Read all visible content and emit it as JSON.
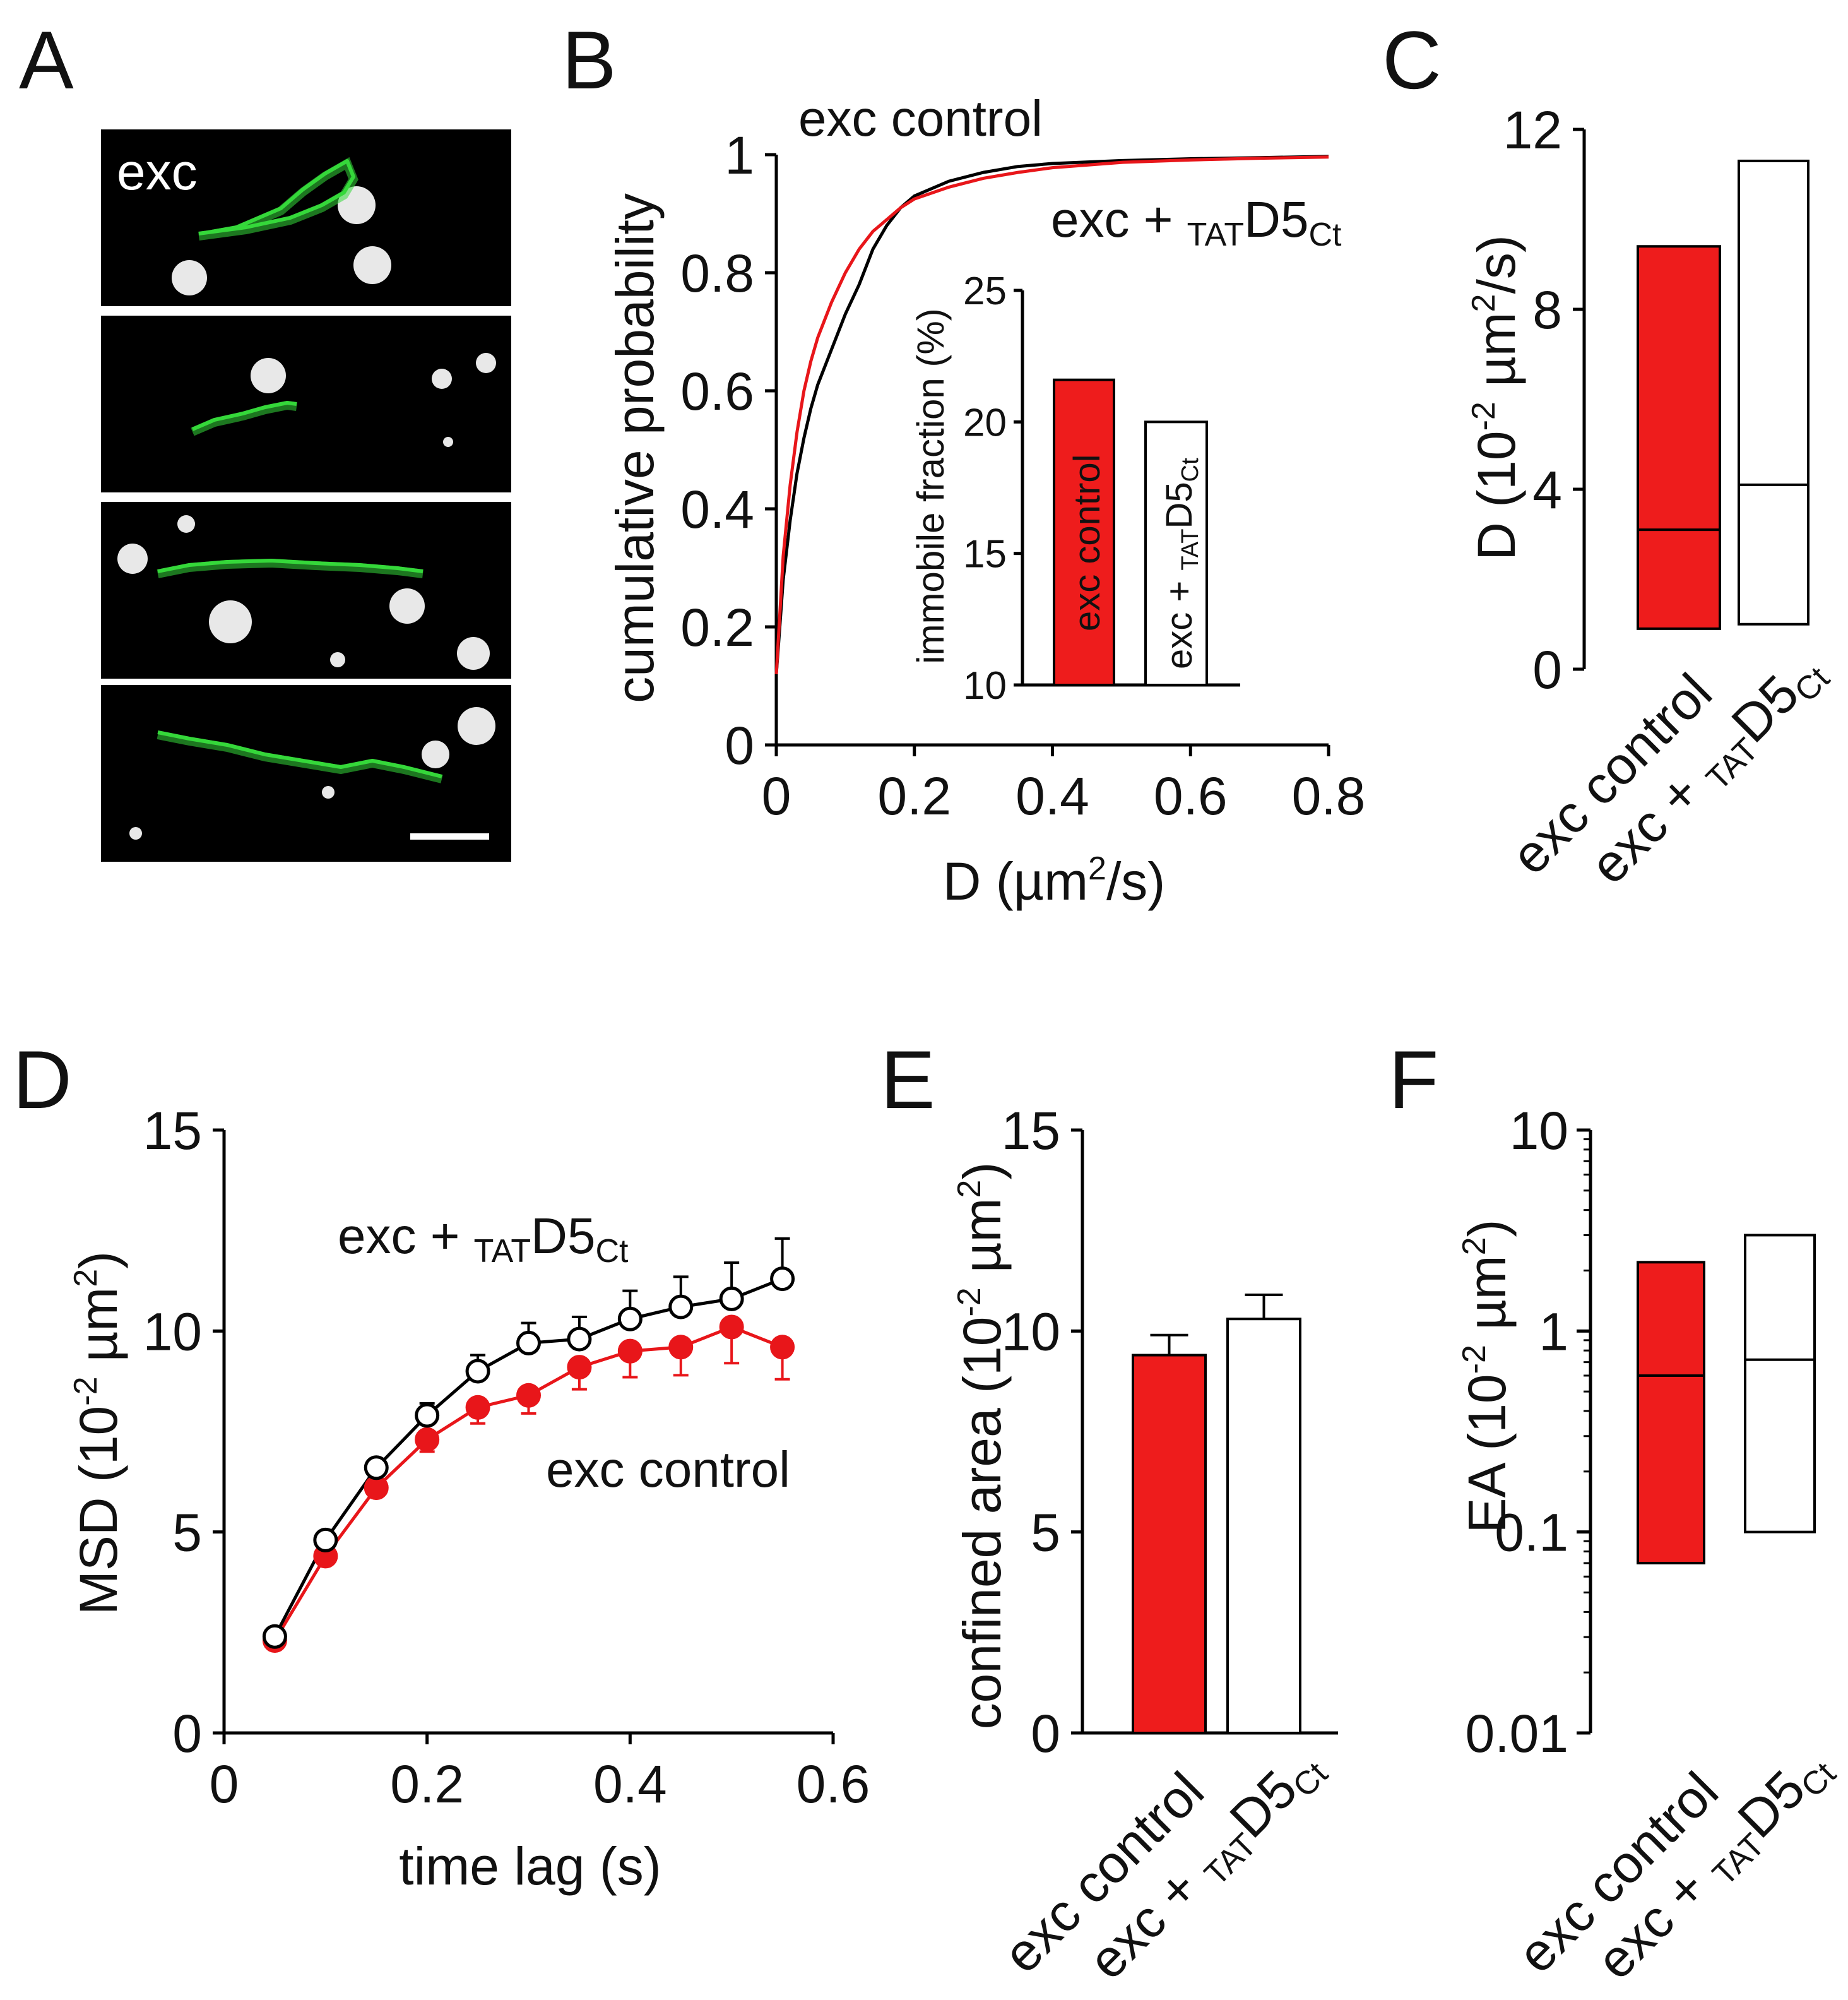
{
  "colors": {
    "control": "#ee1c1c",
    "tat": "#ffffff",
    "control_line": "#e8161a",
    "tat_line": "#000000",
    "track": "#35d83a",
    "image_bg": "#000000"
  },
  "condition_labels": {
    "control": "exc control",
    "tat_prefix": "exc + ",
    "tat_sub": "TAT",
    "tat_main": "D5",
    "tat_sub2": "Ct"
  },
  "panels": {
    "A": {
      "letter": "A",
      "image_label": "exc",
      "image_count": 4,
      "icon": "single-particle-track-micrographs"
    },
    "B": {
      "letter": "B",
      "annotation_control": "exc control",
      "ylabel": "cumulative probability",
      "xlabel_main": "D (µm",
      "xlabel_sup": "2",
      "xlabel_end": "/s)"
    },
    "B_inset": {
      "ylabel": "immobile fraction (%)",
      "bar_label_control": "exc control"
    },
    "C": {
      "letter": "C",
      "ylabel_main": "D (10",
      "ylabel_sup": "-2",
      "ylabel_mid": " µm",
      "ylabel_sup2": "2",
      "ylabel_end": "/s)"
    },
    "D": {
      "letter": "D",
      "annotation_control": "exc control",
      "ylabel_main": "MSD (10",
      "ylabel_sup": "-2",
      "ylabel_mid": " µm",
      "ylabel_sup2": "2",
      "ylabel_end": ")",
      "xlabel": "time lag (s)"
    },
    "E": {
      "letter": "E",
      "ylabel_main": "confined area (10",
      "ylabel_sup": "-2",
      "ylabel_mid": " µm",
      "ylabel_sup2": "2",
      "ylabel_end": ")"
    },
    "F": {
      "letter": "F",
      "ylabel_main": "EA (10",
      "ylabel_sup": "-2",
      "ylabel_mid": " µm",
      "ylabel_sup2": "2",
      "ylabel_end": ")"
    }
  },
  "chart_data": [
    {
      "panel": "B",
      "type": "line",
      "xlabel": "D (µm2/s)",
      "ylabel": "cumulative probability",
      "xlim": [
        0,
        0.8
      ],
      "ylim": [
        0,
        1
      ],
      "xticks": [
        "0",
        "0.2",
        "0.4",
        "0.6",
        "0.8"
      ],
      "yticks": [
        "0",
        "0.2",
        "0.4",
        "0.6",
        "0.8",
        "1"
      ],
      "series": [
        {
          "name": "exc control",
          "color": "#000000",
          "x": [
            0,
            0.005,
            0.01,
            0.02,
            0.03,
            0.04,
            0.05,
            0.06,
            0.08,
            0.1,
            0.12,
            0.14,
            0.16,
            0.18,
            0.2,
            0.25,
            0.3,
            0.35,
            0.4,
            0.5,
            0.6,
            0.7,
            0.8
          ],
          "y": [
            0.12,
            0.2,
            0.28,
            0.38,
            0.46,
            0.52,
            0.57,
            0.61,
            0.67,
            0.73,
            0.78,
            0.84,
            0.88,
            0.91,
            0.93,
            0.955,
            0.97,
            0.98,
            0.985,
            0.99,
            0.993,
            0.995,
            0.997
          ]
        },
        {
          "name": "exc + TATD5Ct",
          "color": "#e8161a",
          "x": [
            0,
            0.005,
            0.01,
            0.02,
            0.03,
            0.04,
            0.05,
            0.06,
            0.08,
            0.1,
            0.12,
            0.14,
            0.16,
            0.18,
            0.2,
            0.25,
            0.3,
            0.35,
            0.4,
            0.5,
            0.6,
            0.7,
            0.8
          ],
          "y": [
            0.12,
            0.22,
            0.32,
            0.44,
            0.53,
            0.6,
            0.65,
            0.69,
            0.75,
            0.8,
            0.84,
            0.87,
            0.89,
            0.91,
            0.925,
            0.945,
            0.96,
            0.97,
            0.978,
            0.987,
            0.991,
            0.994,
            0.996
          ]
        }
      ]
    },
    {
      "panel": "B-inset",
      "type": "bar",
      "ylabel": "immobile fraction (%)",
      "ylim": [
        10,
        25
      ],
      "yticks": [
        "10",
        "15",
        "20",
        "25"
      ],
      "categories": [
        "exc control",
        "exc + TATD5Ct"
      ],
      "values": [
        21.6,
        20
      ]
    },
    {
      "panel": "C",
      "type": "bar",
      "ylabel": "D (10-2 µm2/s)",
      "ylim": [
        0,
        12
      ],
      "yticks": [
        "0",
        "4",
        "8",
        "12"
      ],
      "categories": [
        "exc control",
        "exc + TATD5Ct"
      ],
      "box_low": [
        0.9,
        1.0
      ],
      "box_median": [
        3.1,
        4.1
      ],
      "box_high": [
        9.4,
        11.3
      ]
    },
    {
      "panel": "D",
      "type": "line",
      "xlabel": "time lag (s)",
      "ylabel": "MSD (10-2 µm2)",
      "xlim": [
        0,
        0.6
      ],
      "ylim": [
        0,
        15
      ],
      "xticks": [
        "0",
        "0.2",
        "0.4",
        "0.6"
      ],
      "yticks": [
        "0",
        "5",
        "10",
        "15"
      ],
      "x": [
        0.05,
        0.1,
        0.15,
        0.2,
        0.25,
        0.3,
        0.35,
        0.4,
        0.45,
        0.5,
        0.55
      ],
      "series": [
        {
          "name": "exc control",
          "color": "#e8161a",
          "values": [
            2.3,
            4.4,
            6.1,
            7.3,
            8.1,
            8.4,
            9.1,
            9.5,
            9.6,
            10.1,
            9.6
          ],
          "errors": [
            0.1,
            0.15,
            0.2,
            0.3,
            0.4,
            0.45,
            0.55,
            0.65,
            0.7,
            0.9,
            0.8
          ]
        },
        {
          "name": "exc + TATD5Ct",
          "color": "#000000",
          "values": [
            2.4,
            4.8,
            6.6,
            7.9,
            9.0,
            9.7,
            9.8,
            10.3,
            10.6,
            10.8,
            11.3
          ],
          "errors": [
            0.1,
            0.15,
            0.2,
            0.3,
            0.4,
            0.5,
            0.55,
            0.7,
            0.75,
            0.9,
            1.0
          ]
        }
      ]
    },
    {
      "panel": "E",
      "type": "bar",
      "ylabel": "confined area (10-2 µm2)",
      "ylim": [
        0,
        15
      ],
      "yticks": [
        "0",
        "5",
        "10",
        "15"
      ],
      "categories": [
        "exc control",
        "exc + TATD5Ct"
      ],
      "values": [
        9.4,
        10.3
      ],
      "errors": [
        0.5,
        0.6
      ]
    },
    {
      "panel": "F",
      "type": "bar",
      "ylabel": "EA (10-2 µm2)",
      "yscale": "log",
      "ylim": [
        0.01,
        10
      ],
      "yticks": [
        "0.01",
        "0.1",
        "1",
        "10"
      ],
      "categories": [
        "exc control",
        "exc + TATD5Ct"
      ],
      "box_low": [
        0.07,
        0.1
      ],
      "box_median": [
        0.6,
        0.72
      ],
      "box_high": [
        2.2,
        3.0
      ]
    }
  ]
}
